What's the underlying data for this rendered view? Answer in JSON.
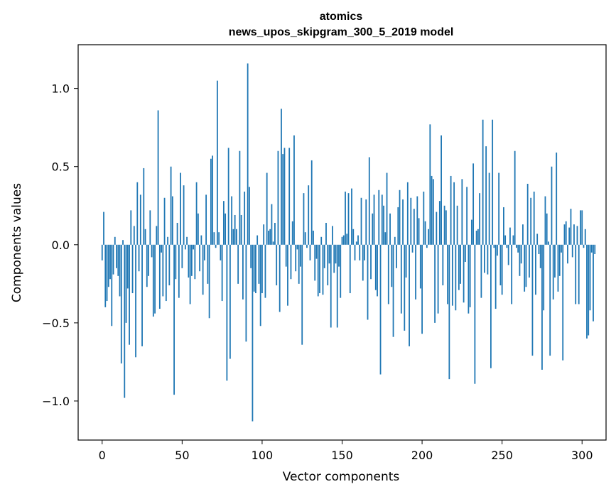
{
  "chart_data": {
    "type": "bar",
    "title": "atomics",
    "subtitle": "news_upos_skipgram_300_5_2019 model",
    "xlabel": "Vector components",
    "ylabel": "Components values",
    "xlim": [
      -15,
      315
    ],
    "ylim": [
      -1.25,
      1.28
    ],
    "xticks": [
      0,
      50,
      100,
      150,
      200,
      250,
      300
    ],
    "xtick_labels": [
      "0",
      "50",
      "100",
      "150",
      "200",
      "250",
      "300"
    ],
    "yticks": [
      -1.0,
      -0.5,
      0.0,
      0.5,
      1.0
    ],
    "ytick_labels": [
      "−1.0",
      "−0.5",
      "0.0",
      "0.5",
      "1.0"
    ],
    "grid": false,
    "bar_color": "#1f77b4",
    "values": [
      -0.1,
      0.21,
      -0.4,
      -0.36,
      -0.27,
      -0.22,
      -0.52,
      -0.19,
      0.05,
      -0.15,
      -0.2,
      -0.33,
      -0.76,
      0.03,
      -0.98,
      -0.5,
      -0.28,
      -0.64,
      0.22,
      -0.31,
      0.12,
      -0.72,
      0.4,
      -0.17,
      0.32,
      -0.65,
      0.49,
      0.1,
      -0.27,
      -0.2,
      0.22,
      -0.08,
      -0.46,
      -0.44,
      0.12,
      0.86,
      -0.41,
      -0.05,
      -0.33,
      0.3,
      -0.36,
      0.05,
      -0.26,
      0.5,
      0.31,
      -0.96,
      -0.22,
      0.14,
      -0.34,
      0.46,
      -0.15,
      0.38,
      -0.03,
      0.05,
      -0.21,
      -0.38,
      -0.2,
      -0.03,
      -0.22,
      0.4,
      0.2,
      -0.17,
      0.06,
      -0.32,
      -0.1,
      0.32,
      -0.25,
      -0.47,
      0.55,
      0.57,
      0.08,
      -0.02,
      1.05,
      0.08,
      -0.1,
      -0.36,
      0.28,
      0.2,
      -0.87,
      0.62,
      -0.73,
      0.31,
      0.1,
      0.19,
      0.1,
      -0.25,
      0.6,
      0.19,
      -0.35,
      0.34,
      -0.62,
      1.16,
      0.37,
      -0.15,
      -1.13,
      -0.3,
      -0.31,
      0.06,
      -0.25,
      -0.52,
      -0.31,
      0.13,
      -0.34,
      0.46,
      0.09,
      0.1,
      0.26,
      0.02,
      0.14,
      -0.26,
      0.6,
      -0.43,
      0.87,
      0.58,
      0.62,
      -0.14,
      -0.39,
      0.62,
      -0.22,
      0.15,
      0.7,
      -0.17,
      -0.03,
      -0.25,
      -0.14,
      -0.64,
      0.33,
      0.08,
      -0.02,
      0.38,
      -0.1,
      0.54,
      0.09,
      -0.23,
      -0.09,
      -0.33,
      -0.31,
      0.05,
      -0.32,
      -0.15,
      0.14,
      -0.26,
      -0.12,
      -0.53,
      0.12,
      -0.18,
      -0.12,
      -0.53,
      -0.14,
      -0.34,
      0.05,
      0.06,
      0.34,
      0.07,
      0.33,
      -0.31,
      0.36,
      0.1,
      -0.1,
      0.02,
      0.06,
      -0.1,
      0.3,
      -0.23,
      -0.1,
      0.29,
      -0.48,
      0.56,
      -0.22,
      0.2,
      0.32,
      -0.29,
      -0.33,
      0.35,
      -0.83,
      0.32,
      0.25,
      0.08,
      0.46,
      -0.38,
      0.2,
      -0.27,
      -0.59,
      0.05,
      -0.15,
      0.24,
      0.35,
      -0.44,
      0.29,
      -0.55,
      -0.21,
      0.4,
      -0.65,
      0.3,
      -0.05,
      0.23,
      -0.35,
      0.31,
      0.17,
      -0.28,
      -0.57,
      0.34,
      0.15,
      -0.02,
      0.1,
      0.77,
      0.44,
      0.42,
      -0.5,
      0.21,
      -0.44,
      0.28,
      0.7,
      -0.26,
      0.25,
      0.22,
      -0.38,
      -0.86,
      0.44,
      -0.39,
      0.4,
      -0.42,
      0.25,
      -0.29,
      -0.25,
      0.42,
      -0.37,
      -0.11,
      0.37,
      -0.44,
      -0.4,
      0.16,
      0.52,
      -0.89,
      0.09,
      0.1,
      0.33,
      -0.34,
      0.8,
      -0.18,
      0.63,
      -0.19,
      0.46,
      -0.79,
      0.8,
      -0.02,
      -0.41,
      -0.07,
      0.46,
      -0.26,
      -0.32,
      0.24,
      0.06,
      -0.02,
      -0.13,
      0.11,
      -0.38,
      0.06,
      0.6,
      -0.02,
      -0.05,
      -0.2,
      -0.12,
      0.13,
      -0.3,
      -0.27,
      0.39,
      -0.21,
      0.3,
      -0.71,
      0.34,
      -0.32,
      0.07,
      -0.06,
      -0.15,
      -0.8,
      -0.42,
      0.31,
      0.2,
      0.02,
      -0.71,
      0.5,
      -0.35,
      -0.21,
      0.59,
      -0.3,
      -0.2,
      -0.05,
      -0.74,
      0.13,
      0.15,
      -0.12,
      0.11,
      0.23,
      -0.08,
      0.13,
      -0.38,
      0.12,
      -0.38,
      0.22,
      0.22,
      -0.02,
      0.1,
      -0.6,
      -0.58,
      -0.42,
      -0.05,
      -0.49,
      -0.06
    ]
  }
}
